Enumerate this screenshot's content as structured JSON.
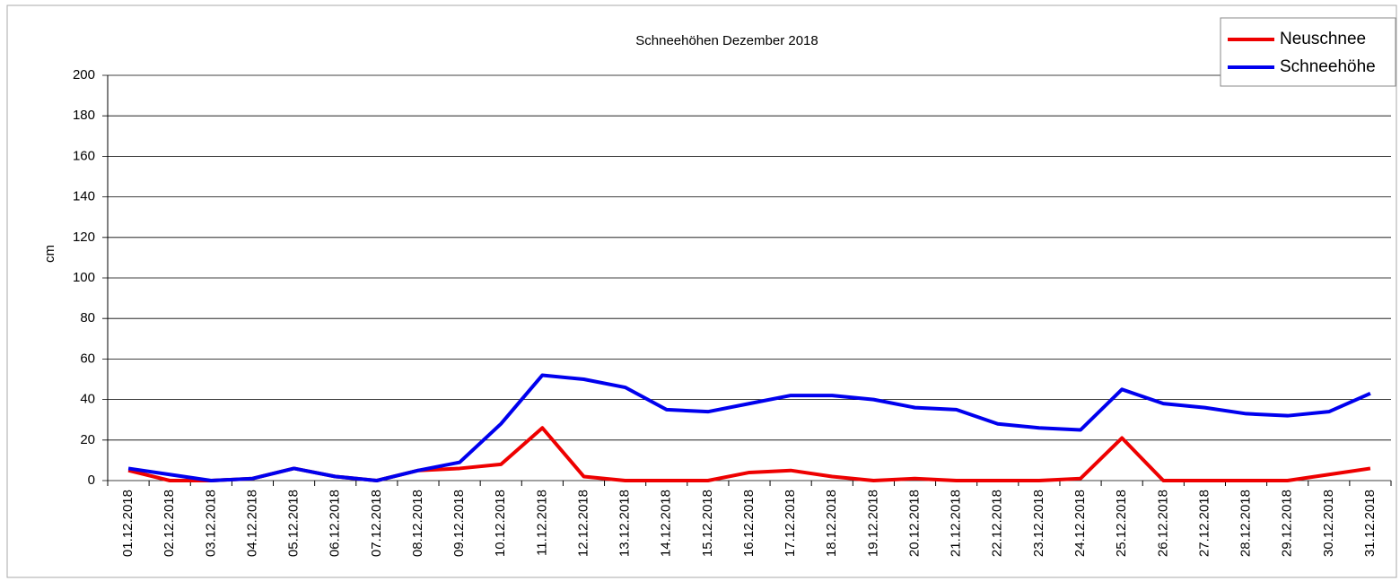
{
  "chart_data": {
    "type": "line",
    "title": "Schneehöhen Dezember 2018",
    "y_label": "cm",
    "categories": [
      "01.12.2018",
      "02.12.2018",
      "03.12.2018",
      "04.12.2018",
      "05.12.2018",
      "06.12.2018",
      "07.12.2018",
      "08.12.2018",
      "09.12.2018",
      "10.12.2018",
      "11.12.2018",
      "12.12.2018",
      "13.12.2018",
      "14.12.2018",
      "15.12.2018",
      "16.12.2018",
      "17.12.2018",
      "18.12.2018",
      "19.12.2018",
      "20.12.2018",
      "21.12.2018",
      "22.12.2018",
      "23.12.2018",
      "24.12.2018",
      "25.12.2018",
      "26.12.2018",
      "27.12.2018",
      "28.12.2018",
      "29.12.2018",
      "30.12.2018",
      "31.12.2018"
    ],
    "series": [
      {
        "name": "Neuschnee",
        "color": "#ee0000",
        "values": [
          5,
          0,
          0,
          1,
          6,
          2,
          0,
          5,
          6,
          8,
          26,
          2,
          0,
          0,
          0,
          4,
          5,
          2,
          0,
          1,
          0,
          0,
          0,
          1,
          21,
          0,
          0,
          0,
          0,
          3,
          6
        ]
      },
      {
        "name": "Schneehöhe",
        "color": "#0000ee",
        "values": [
          6,
          3,
          0,
          1,
          6,
          2,
          0,
          5,
          9,
          28,
          52,
          50,
          46,
          35,
          34,
          38,
          42,
          42,
          40,
          36,
          35,
          28,
          26,
          25,
          45,
          38,
          36,
          33,
          32,
          34,
          43
        ]
      }
    ],
    "ylim": [
      0,
      200
    ],
    "yticks": [
      0,
      20,
      40,
      60,
      80,
      100,
      120,
      140,
      160,
      180,
      200
    ],
    "grid": true,
    "legend": "top-right"
  }
}
